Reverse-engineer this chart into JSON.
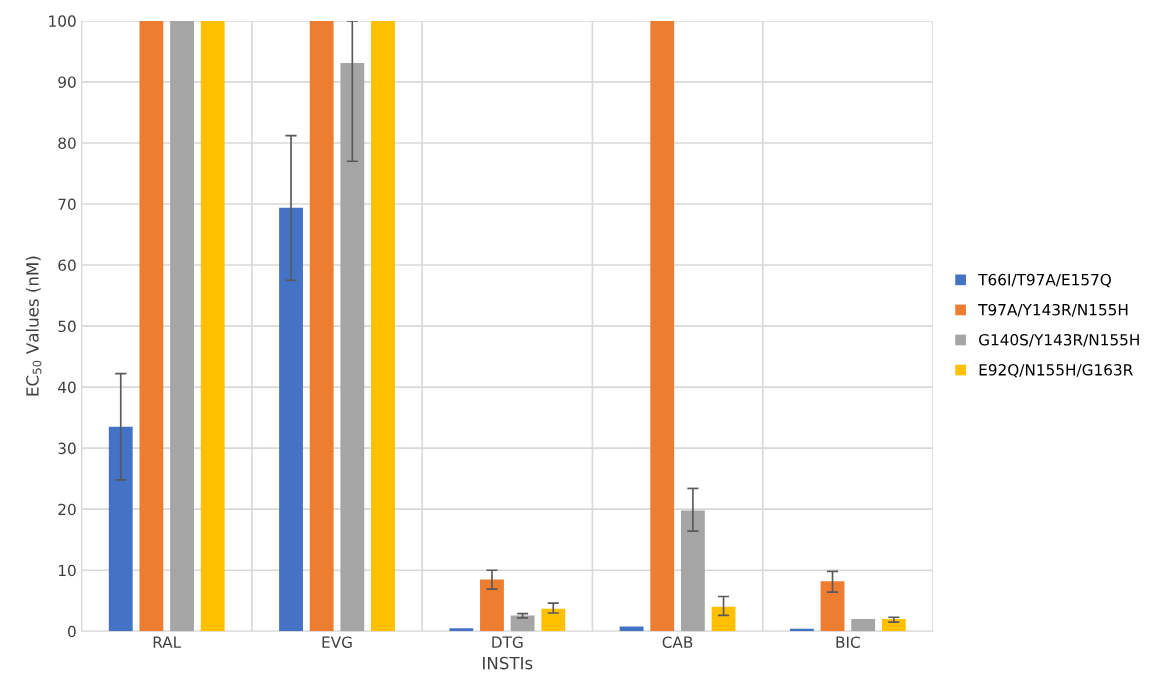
{
  "chart_data": {
    "type": "bar",
    "xlabel": "INSTIs",
    "ylabel": "EC$_{50}$ Values (nM)",
    "categories": [
      "RAL",
      "EVG",
      "DTG",
      "CAB",
      "BIC"
    ],
    "series": [
      {
        "name": "T66I/T97A/E157Q",
        "color": "#4472c4",
        "values": [
          33.5,
          69.4,
          0.5,
          0.8,
          0.4
        ],
        "errors": [
          [
            24.8,
            42.2
          ],
          [
            57.5,
            81.2
          ],
          null,
          null,
          null
        ]
      },
      {
        "name": "T97A/Y143R/N155H",
        "color": "#ed7d31",
        "values": [
          100,
          100,
          8.5,
          100,
          8.2
        ],
        "errors": [
          null,
          null,
          [
            6.9,
            10.0
          ],
          null,
          [
            6.4,
            9.8
          ]
        ]
      },
      {
        "name": "G140S/Y143R/N155H",
        "color": "#a5a5a5",
        "values": [
          100,
          93.1,
          2.6,
          19.8,
          2.0
        ],
        "errors": [
          null,
          [
            77,
            100
          ],
          [
            2.2,
            2.9
          ],
          [
            16.4,
            23.4
          ],
          null
        ]
      },
      {
        "name": "E92Q/N155H/G163R",
        "color": "#ffc000",
        "values": [
          100,
          100,
          3.7,
          4.0,
          2.0
        ],
        "errors": [
          null,
          null,
          [
            3.0,
            4.6
          ],
          [
            2.6,
            5.7
          ],
          [
            1.5,
            2.3
          ]
        ]
      }
    ],
    "ylim": [
      0,
      100
    ],
    "yticks": [
      0,
      10,
      20,
      30,
      40,
      50,
      60,
      70,
      80,
      90,
      100
    ],
    "grid": true,
    "legend": "right"
  }
}
